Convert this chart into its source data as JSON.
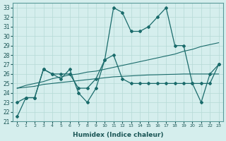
{
  "xlabel": "Humidex (Indice chaleur)",
  "background_color": "#d5eeed",
  "grid_color": "#b5d9d5",
  "line_color": "#1a6b6b",
  "x_values": [
    0,
    1,
    2,
    3,
    4,
    5,
    6,
    7,
    8,
    9,
    10,
    11,
    12,
    13,
    14,
    15,
    16,
    17,
    18,
    19,
    20,
    21,
    22,
    23
  ],
  "series1": [
    23.0,
    23.5,
    23.5,
    26.5,
    26.0,
    26.0,
    26.0,
    24.5,
    24.5,
    25.5,
    27.5,
    33.0,
    32.5,
    30.5,
    30.5,
    31.0,
    32.0,
    33.0,
    29.0,
    29.0,
    25.0,
    23.0,
    26.0,
    27.0
  ],
  "series2": [
    21.5,
    23.5,
    23.5,
    26.5,
    26.0,
    25.5,
    26.5,
    24.0,
    23.0,
    24.5,
    27.5,
    28.0,
    25.5,
    25.0,
    25.0,
    25.0,
    25.0,
    25.0,
    25.0,
    25.0,
    25.0,
    25.0,
    25.0,
    27.0
  ],
  "trend1": [
    24.5,
    24.8,
    25.0,
    25.2,
    25.5,
    25.7,
    25.9,
    26.0,
    26.2,
    26.3,
    26.5,
    26.7,
    26.9,
    27.1,
    27.3,
    27.5,
    27.7,
    27.9,
    28.1,
    28.4,
    28.6,
    28.9,
    29.1,
    29.3
  ],
  "trend2": [
    24.5,
    24.6,
    24.7,
    24.9,
    25.0,
    25.1,
    25.2,
    25.3,
    25.4,
    25.5,
    25.6,
    25.7,
    25.75,
    25.8,
    25.85,
    25.9,
    25.92,
    25.95,
    25.97,
    26.0,
    26.0,
    26.0,
    26.0,
    26.0
  ],
  "ylim": [
    21,
    33.5
  ],
  "xlim": [
    -0.5,
    23.5
  ],
  "yticks": [
    21,
    22,
    23,
    24,
    25,
    26,
    27,
    28,
    29,
    30,
    31,
    32,
    33
  ]
}
